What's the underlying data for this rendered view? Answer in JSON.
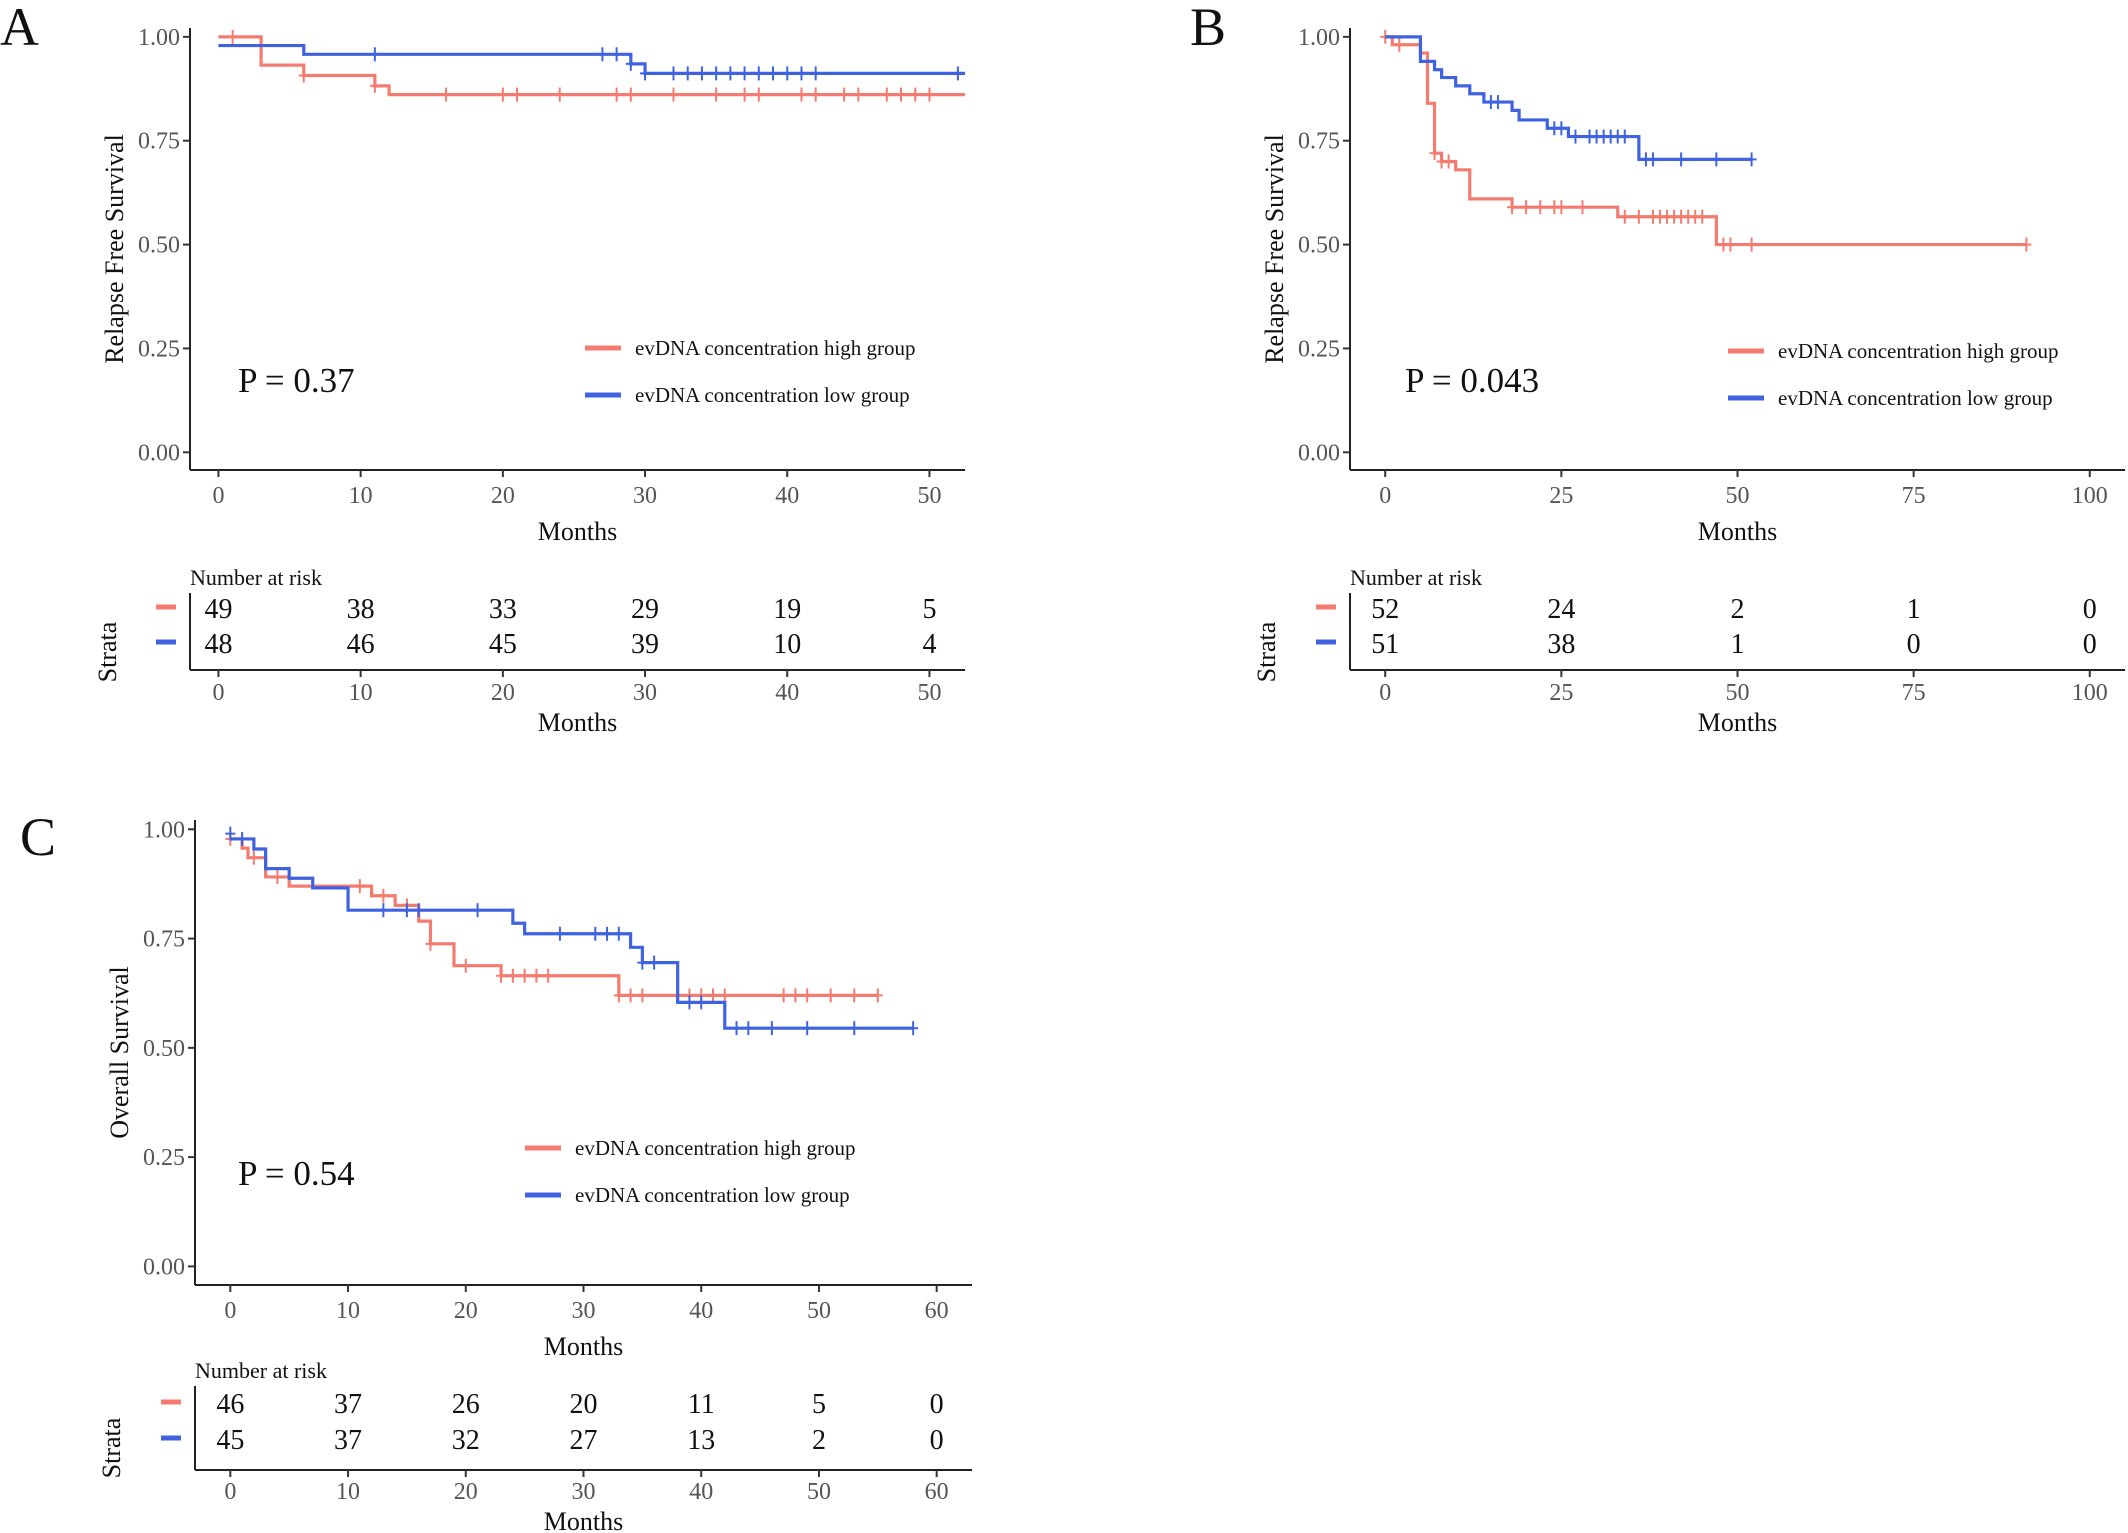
{
  "colors": {
    "high": "#F47B6F",
    "low": "#3F63E0"
  },
  "chart_data": [
    {
      "id": "A",
      "type": "line",
      "panel_label": "A",
      "ylabel": "Relapse Free Survival",
      "xlabel": "Months",
      "xlim": [
        -2,
        52.5
      ],
      "ylim": [
        0,
        1
      ],
      "xticks": [
        0,
        10,
        20,
        30,
        40,
        50
      ],
      "yticks": [
        0,
        0.25,
        0.5,
        0.75,
        1.0
      ],
      "ytick_labels": [
        "0.00",
        "0.25",
        "0.50",
        "0.75",
        "1.00"
      ],
      "p_value": "P = 0.37",
      "legend": {
        "high_label": "evDNA concentration high group",
        "low_label": "evDNA concentration low group"
      },
      "series": [
        {
          "name": "evDNA concentration high group",
          "color_key": "high",
          "steps": [
            [
              0,
              1.0
            ],
            [
              3,
              0.932
            ],
            [
              6,
              0.907
            ],
            [
              11,
              0.882
            ],
            [
              12,
              0.861
            ],
            [
              52.5,
              0.861
            ]
          ],
          "censor": [
            [
              1,
              1.0
            ],
            [
              6,
              0.907
            ],
            [
              11,
              0.882
            ],
            [
              16,
              0.861
            ],
            [
              20,
              0.861
            ],
            [
              21,
              0.861
            ],
            [
              24,
              0.861
            ],
            [
              28,
              0.861
            ],
            [
              29,
              0.861
            ],
            [
              32,
              0.861
            ],
            [
              35,
              0.861
            ],
            [
              37,
              0.861
            ],
            [
              38,
              0.861
            ],
            [
              41,
              0.861
            ],
            [
              42,
              0.861
            ],
            [
              44,
              0.861
            ],
            [
              45,
              0.861
            ],
            [
              47,
              0.861
            ],
            [
              48,
              0.861
            ],
            [
              49,
              0.861
            ],
            [
              50,
              0.861
            ]
          ]
        },
        {
          "name": "evDNA concentration low group",
          "color_key": "low",
          "steps": [
            [
              0,
              0.979
            ],
            [
              6,
              0.958
            ],
            [
              29,
              0.935
            ],
            [
              30,
              0.912
            ],
            [
              52.5,
              0.912
            ]
          ],
          "censor": [
            [
              11,
              0.958
            ],
            [
              27,
              0.958
            ],
            [
              28,
              0.958
            ],
            [
              29,
              0.935
            ],
            [
              30,
              0.912
            ],
            [
              32,
              0.912
            ],
            [
              33,
              0.912
            ],
            [
              34,
              0.912
            ],
            [
              35,
              0.912
            ],
            [
              36,
              0.912
            ],
            [
              37,
              0.912
            ],
            [
              38,
              0.912
            ],
            [
              39,
              0.912
            ],
            [
              40,
              0.912
            ],
            [
              41,
              0.912
            ],
            [
              42,
              0.912
            ],
            [
              52,
              0.912
            ]
          ]
        }
      ],
      "risk_table": {
        "title": "Number at risk",
        "strata_label": "Strata",
        "xticks": [
          0,
          10,
          20,
          30,
          40,
          50
        ],
        "high": [
          "49",
          "38",
          "33",
          "29",
          "19",
          "5"
        ],
        "low": [
          "48",
          "46",
          "45",
          "39",
          "10",
          "4"
        ]
      }
    },
    {
      "id": "B",
      "type": "line",
      "panel_label": "B",
      "ylabel": "Relapse Free Survival",
      "xlabel": "Months",
      "xlim": [
        -5,
        105
      ],
      "ylim": [
        0,
        1
      ],
      "xticks": [
        0,
        25,
        50,
        75,
        100
      ],
      "yticks": [
        0,
        0.25,
        0.5,
        0.75,
        1.0
      ],
      "ytick_labels": [
        "0.00",
        "0.25",
        "0.50",
        "0.75",
        "1.00"
      ],
      "p_value": "P = 0.043",
      "legend": {
        "high_label": "evDNA concentration high group",
        "low_label": "evDNA concentration low group"
      },
      "series": [
        {
          "name": "evDNA concentration high group",
          "color_key": "high",
          "steps": [
            [
              0,
              1.0
            ],
            [
              1,
              0.981
            ],
            [
              5,
              0.961
            ],
            [
              6,
              0.84
            ],
            [
              7,
              0.72
            ],
            [
              8,
              0.7
            ],
            [
              10,
              0.68
            ],
            [
              12,
              0.61
            ],
            [
              18,
              0.59
            ],
            [
              33,
              0.567
            ],
            [
              47,
              0.5
            ],
            [
              91,
              0.5
            ]
          ],
          "censor": [
            [
              0,
              1.0
            ],
            [
              2,
              0.981
            ],
            [
              7,
              0.72
            ],
            [
              8,
              0.7
            ],
            [
              9,
              0.7
            ],
            [
              18,
              0.59
            ],
            [
              20,
              0.59
            ],
            [
              22,
              0.59
            ],
            [
              24,
              0.59
            ],
            [
              25,
              0.59
            ],
            [
              28,
              0.59
            ],
            [
              34,
              0.567
            ],
            [
              36,
              0.567
            ],
            [
              38,
              0.567
            ],
            [
              39,
              0.567
            ],
            [
              40,
              0.567
            ],
            [
              41,
              0.567
            ],
            [
              42,
              0.567
            ],
            [
              43,
              0.567
            ],
            [
              44,
              0.567
            ],
            [
              45,
              0.567
            ],
            [
              48,
              0.5
            ],
            [
              49,
              0.5
            ],
            [
              52,
              0.5
            ],
            [
              91,
              0.5
            ]
          ]
        },
        {
          "name": "evDNA concentration low group",
          "color_key": "low",
          "steps": [
            [
              0,
              1.0
            ],
            [
              5,
              0.941
            ],
            [
              7,
              0.921
            ],
            [
              8,
              0.902
            ],
            [
              10,
              0.882
            ],
            [
              12,
              0.863
            ],
            [
              14,
              0.843
            ],
            [
              18,
              0.823
            ],
            [
              19,
              0.8
            ],
            [
              23,
              0.78
            ],
            [
              26,
              0.76
            ],
            [
              36,
              0.705
            ],
            [
              52,
              0.705
            ]
          ],
          "censor": [
            [
              15,
              0.843
            ],
            [
              16,
              0.843
            ],
            [
              24,
              0.78
            ],
            [
              25,
              0.78
            ],
            [
              27,
              0.76
            ],
            [
              29,
              0.76
            ],
            [
              30,
              0.76
            ],
            [
              31,
              0.76
            ],
            [
              32,
              0.76
            ],
            [
              33,
              0.76
            ],
            [
              34,
              0.76
            ],
            [
              37,
              0.705
            ],
            [
              38,
              0.705
            ],
            [
              42,
              0.705
            ],
            [
              47,
              0.705
            ],
            [
              52,
              0.705
            ]
          ]
        }
      ],
      "risk_table": {
        "title": "Number at risk",
        "strata_label": "Strata",
        "xticks": [
          0,
          25,
          50,
          75,
          100
        ],
        "high": [
          "52",
          "24",
          "2",
          "1",
          "0"
        ],
        "low": [
          "51",
          "38",
          "1",
          "0",
          "0"
        ]
      }
    },
    {
      "id": "C",
      "type": "line",
      "panel_label": "C",
      "ylabel": "Overall Survival",
      "xlabel": "Months",
      "xlim": [
        -3,
        63
      ],
      "ylim": [
        0,
        1
      ],
      "xticks": [
        0,
        10,
        20,
        30,
        40,
        50,
        60
      ],
      "yticks": [
        0,
        0.25,
        0.5,
        0.75,
        1.0
      ],
      "ytick_labels": [
        "0.00",
        "0.25",
        "0.50",
        "0.75",
        "1.00"
      ],
      "p_value": "P = 0.54",
      "legend": {
        "high_label": "evDNA concentration high group",
        "low_label": "evDNA concentration low group"
      },
      "series": [
        {
          "name": "evDNA concentration high group",
          "color_key": "high",
          "steps": [
            [
              0,
              0.978
            ],
            [
              1,
              0.957
            ],
            [
              1.5,
              0.935
            ],
            [
              3,
              0.891
            ],
            [
              5,
              0.87
            ],
            [
              12,
              0.848
            ],
            [
              14,
              0.826
            ],
            [
              16,
              0.79
            ],
            [
              17,
              0.738
            ],
            [
              19,
              0.688
            ],
            [
              23,
              0.665
            ],
            [
              33,
              0.62
            ],
            [
              55,
              0.62
            ]
          ],
          "censor": [
            [
              0,
              0.978
            ],
            [
              2,
              0.935
            ],
            [
              4,
              0.891
            ],
            [
              11,
              0.87
            ],
            [
              13,
              0.848
            ],
            [
              15,
              0.826
            ],
            [
              17,
              0.738
            ],
            [
              20,
              0.688
            ],
            [
              23,
              0.665
            ],
            [
              24,
              0.665
            ],
            [
              25,
              0.665
            ],
            [
              26,
              0.665
            ],
            [
              27,
              0.665
            ],
            [
              33,
              0.62
            ],
            [
              34,
              0.62
            ],
            [
              35,
              0.62
            ],
            [
              39,
              0.62
            ],
            [
              40,
              0.62
            ],
            [
              41,
              0.62
            ],
            [
              42,
              0.62
            ],
            [
              47,
              0.62
            ],
            [
              48,
              0.62
            ],
            [
              49,
              0.62
            ],
            [
              51,
              0.62
            ],
            [
              53,
              0.62
            ],
            [
              55,
              0.62
            ]
          ]
        },
        {
          "name": "evDNA concentration low group",
          "color_key": "low",
          "steps": [
            [
              0,
              0.978
            ],
            [
              2,
              0.955
            ],
            [
              3,
              0.91
            ],
            [
              5,
              0.888
            ],
            [
              7,
              0.866
            ],
            [
              10,
              0.815
            ],
            [
              24,
              0.785
            ],
            [
              25,
              0.761
            ],
            [
              34,
              0.73
            ],
            [
              35,
              0.695
            ],
            [
              38,
              0.604
            ],
            [
              42,
              0.545
            ],
            [
              58,
              0.545
            ]
          ],
          "censor": [
            [
              0,
              0.99
            ],
            [
              1,
              0.978
            ],
            [
              13,
              0.815
            ],
            [
              15,
              0.815
            ],
            [
              16,
              0.815
            ],
            [
              21,
              0.815
            ],
            [
              28,
              0.761
            ],
            [
              31,
              0.761
            ],
            [
              32,
              0.761
            ],
            [
              33,
              0.761
            ],
            [
              35,
              0.695
            ],
            [
              36,
              0.695
            ],
            [
              39,
              0.604
            ],
            [
              40,
              0.604
            ],
            [
              43,
              0.545
            ],
            [
              44,
              0.545
            ],
            [
              46,
              0.545
            ],
            [
              49,
              0.545
            ],
            [
              53,
              0.545
            ],
            [
              58,
              0.545
            ]
          ]
        }
      ],
      "risk_table": {
        "title": "Number at risk",
        "strata_label": "Strata",
        "xticks": [
          0,
          10,
          20,
          30,
          40,
          50,
          60
        ],
        "high": [
          "46",
          "37",
          "26",
          "20",
          "11",
          "5",
          "0"
        ],
        "low": [
          "45",
          "37",
          "32",
          "27",
          "13",
          "2",
          "0"
        ]
      }
    }
  ]
}
